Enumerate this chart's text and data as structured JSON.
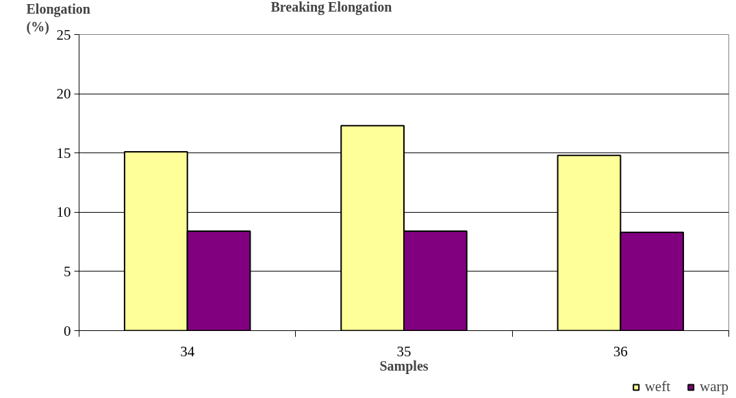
{
  "chart_data": {
    "type": "bar",
    "title": "Breaking Elongation",
    "xlabel": "Samples",
    "ylabel": "Elongation\n(%)",
    "categories": [
      "34",
      "35",
      "36"
    ],
    "series": [
      {
        "name": "weft",
        "color": "#ffff99",
        "values": [
          15.1,
          17.3,
          14.8
        ]
      },
      {
        "name": "warp",
        "color": "#800080",
        "values": [
          8.4,
          8.4,
          8.3
        ]
      }
    ],
    "ylim": [
      0,
      25
    ],
    "yticks": [
      0,
      5,
      10,
      15,
      20,
      25
    ],
    "grid": "y",
    "legend": "bottom right"
  }
}
